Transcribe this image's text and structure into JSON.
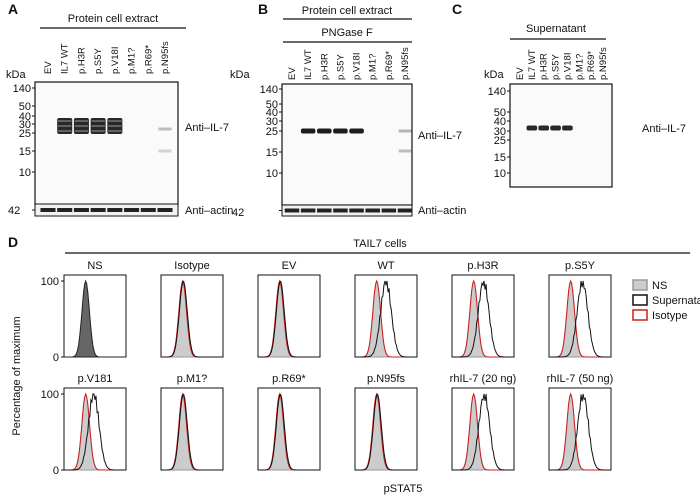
{
  "panels": [
    {
      "label": "A",
      "header": "Protein cell extract",
      "lanes": [
        {
          "label": "EV",
          "color": "#111111"
        },
        {
          "label": "IL7 WT",
          "color": "#111111"
        },
        {
          "label": "p.H3R",
          "color": "#111111"
        },
        {
          "label": "p.S5Y",
          "color": "#111111"
        },
        {
          "label": "p.V18I",
          "color": "#111111"
        },
        {
          "label": "p.M1?",
          "color": "#7b4fc8"
        },
        {
          "label": "p.R69*",
          "color": "#1c1cd0"
        },
        {
          "label": "p.N95fs",
          "color": "#d01c1c"
        }
      ],
      "unit": "kDa",
      "markers": [
        "140",
        "50",
        "40",
        "30",
        "25",
        "15",
        "10"
      ],
      "antibody": "Anti–IL-7",
      "actin_marker": "42",
      "actin_antibody": "Anti–actin"
    },
    {
      "label": "B",
      "header": "Protein cell extract",
      "subheader": "PNGase F",
      "lanes": [
        {
          "label": "EV",
          "color": "#111111"
        },
        {
          "label": "IL7 WT",
          "color": "#111111"
        },
        {
          "label": "p.H3R",
          "color": "#111111"
        },
        {
          "label": "p.S5Y",
          "color": "#111111"
        },
        {
          "label": "p.V18I",
          "color": "#111111"
        },
        {
          "label": "p.M1?",
          "color": "#7b4fc8"
        },
        {
          "label": "p.R69*",
          "color": "#1c1cd0"
        },
        {
          "label": "p.N95fs",
          "color": "#d01c1c"
        }
      ],
      "unit": "kDa",
      "markers": [
        "140",
        "50",
        "40",
        "30",
        "25",
        "15",
        "10"
      ],
      "antibody": "Anti–IL-7",
      "actin_marker": "42",
      "actin_antibody": "Anti–actin"
    },
    {
      "label": "C",
      "header": "Supernatant",
      "lanes": [
        {
          "label": "EV",
          "color": "#111111"
        },
        {
          "label": "IL7 WT",
          "color": "#111111"
        },
        {
          "label": "p.H3R",
          "color": "#111111"
        },
        {
          "label": "p.S5Y",
          "color": "#111111"
        },
        {
          "label": "p.V18I",
          "color": "#111111"
        },
        {
          "label": "p.M1?",
          "color": "#7b4fc8"
        },
        {
          "label": "p.R69*",
          "color": "#1c1cd0"
        },
        {
          "label": "p.N95fs",
          "color": "#d01c1c"
        }
      ],
      "unit": "kDa",
      "markers": [
        "140",
        "50",
        "40",
        "30",
        "25",
        "15",
        "10"
      ],
      "antibody": "Anti–IL-7"
    }
  ],
  "flow": {
    "label": "D",
    "title": "TAIL7 cells",
    "y_label": "Percentage of maximum",
    "x_label": "pSTAT5",
    "y_ticks": [
      "100",
      "0"
    ],
    "plots": [
      {
        "title": "NS",
        "color": "#111111"
      },
      {
        "title": "Isotype",
        "color": "#111111"
      },
      {
        "title": "EV",
        "color": "#111111"
      },
      {
        "title": "WT",
        "color": "#111111"
      },
      {
        "title": "p.H3R",
        "color": "#111111"
      },
      {
        "title": "p.S5Y",
        "color": "#111111"
      },
      {
        "title": "p.V181",
        "color": "#111111"
      },
      {
        "title": "p.M1?",
        "color": "#7b4fc8"
      },
      {
        "title": "p.R69*",
        "color": "#1c1cd0"
      },
      {
        "title": "p.N95fs",
        "color": "#d01c1c"
      },
      {
        "title": "rhIL-7 (20 ng)",
        "color": "#111111"
      },
      {
        "title": "rhIL-7 (50 ng)",
        "color": "#111111"
      }
    ],
    "legend": [
      {
        "label": "NS",
        "color": "#cccccc"
      },
      {
        "label": "Supernatant",
        "color": "#111111"
      },
      {
        "label": "Isotype",
        "color": "#d01c1c"
      }
    ]
  }
}
